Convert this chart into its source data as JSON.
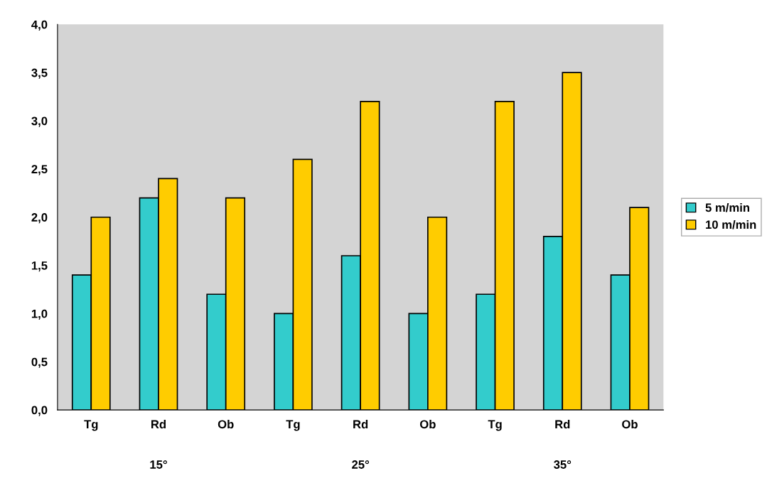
{
  "chart_data": {
    "type": "bar",
    "categories": [
      "Tg",
      "Rd",
      "Ob",
      "Tg",
      "Rd",
      "Ob",
      "Tg",
      "Rd",
      "Ob"
    ],
    "series": [
      {
        "name": "5 m/min",
        "color": "#33cccc",
        "values": [
          1.4,
          2.2,
          1.2,
          1.0,
          1.6,
          1.0,
          1.2,
          1.8,
          1.4
        ]
      },
      {
        "name": "10 m/min",
        "color": "#ffcc00",
        "values": [
          2.0,
          2.4,
          2.2,
          2.6,
          3.2,
          2.0,
          3.2,
          3.5,
          2.1
        ]
      }
    ],
    "annotations": [
      "15°",
      "25°",
      "35°"
    ],
    "ylim": [
      0,
      4
    ],
    "yticks": [
      {
        "value": 0,
        "label": "0,0"
      },
      {
        "value": 0.5,
        "label": "0,5"
      },
      {
        "value": 1,
        "label": "1,0"
      },
      {
        "value": 1.5,
        "label": "1,5"
      },
      {
        "value": 2,
        "label": "2,0"
      },
      {
        "value": 2.5,
        "label": "2,5"
      },
      {
        "value": 3,
        "label": "3,0"
      },
      {
        "value": 3.5,
        "label": "3,5"
      },
      {
        "value": 4,
        "label": "4,0"
      }
    ],
    "legend": "right",
    "grid": false
  }
}
